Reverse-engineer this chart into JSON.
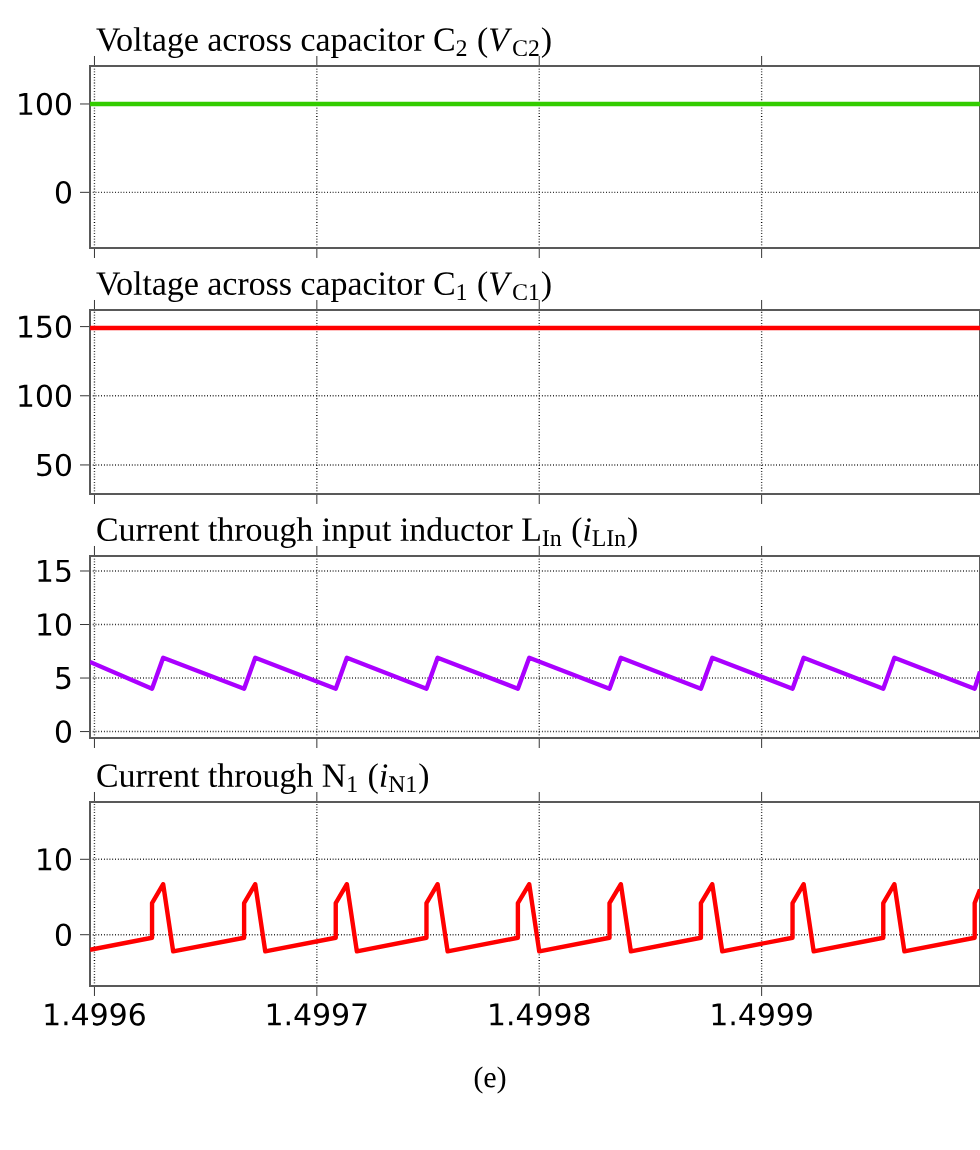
{
  "chart_data": [
    {
      "type": "line",
      "title": "Voltage across capacitor C$_{2}$ (*V*$_{C2}$)",
      "x": [
        1.499598,
        1.4999982
      ],
      "xlim": [
        1.499598,
        1.4999982
      ],
      "xticks": [
        1.4996,
        1.4997,
        1.4998,
        1.4999
      ],
      "ylim": [
        -63,
        143
      ],
      "yticks": [
        0,
        100
      ],
      "tick_labels": "y",
      "grid": true,
      "series": [
        {
          "color": "#33cc00",
          "values": [
            100,
            100
          ]
        }
      ]
    },
    {
      "type": "line",
      "title": "Voltage across capacitor C$_{1}$ (*V*$_{C1}$)",
      "x": [
        1.499598,
        1.4999982
      ],
      "xlim": [
        1.499598,
        1.4999982
      ],
      "xticks": [
        1.4996,
        1.4997,
        1.4998,
        1.4999
      ],
      "ylim": [
        29,
        162
      ],
      "yticks": [
        50,
        100,
        150
      ],
      "tick_labels": "y",
      "grid": true,
      "series": [
        {
          "color": "#ff0000",
          "values": [
            149,
            149
          ]
        }
      ]
    },
    {
      "type": "line",
      "title": "Current through input inductor L$_{In}$ (*i*$_{LIn}$)",
      "xlim": [
        1.499598,
        1.4999982
      ],
      "xticks": [
        1.4996,
        1.4997,
        1.4998,
        1.4999
      ],
      "ylim": [
        -0.6,
        16.4
      ],
      "yticks": [
        0,
        5,
        10,
        15
      ],
      "tick_labels": "y",
      "grid": true,
      "x": [
        1.499598,
        1.4996259,
        1.4996309,
        1.4996673,
        1.4996723,
        1.4997085,
        1.4997135,
        1.4997493,
        1.4997543,
        1.4997904,
        1.4997955,
        1.4998316,
        1.4998367,
        1.4998727,
        1.4998778,
        1.4999139,
        1.4999189,
        1.4999547,
        1.4999597,
        1.4999958,
        1.4999982
      ],
      "series": [
        {
          "color": "#aa00ff",
          "values": [
            6.5,
            4.0,
            6.9,
            4.0,
            6.9,
            4.0,
            6.9,
            4.0,
            6.9,
            4.0,
            6.9,
            4.0,
            6.9,
            4.0,
            6.9,
            4.0,
            6.9,
            4.0,
            6.9,
            4.0,
            5.6
          ]
        }
      ]
    },
    {
      "type": "line",
      "title": "Current through N$_{1}$ (*i*$_{N1}$)",
      "xlim": [
        1.499598,
        1.4999982
      ],
      "xticks": [
        1.4996,
        1.4997,
        1.4998,
        1.4999
      ],
      "ylim": [
        -6.8,
        17.6
      ],
      "yticks": [
        0,
        10
      ],
      "grid": true,
      "annotations": [
        "(e)"
      ],
      "x": [
        1.499598,
        1.4996259,
        1.4996259,
        1.4996309,
        1.4996354,
        1.4996673,
        1.4996673,
        1.4996723,
        1.4996768,
        1.4997085,
        1.4997085,
        1.4997135,
        1.499718,
        1.4997493,
        1.4997493,
        1.4997543,
        1.4997588,
        1.4997904,
        1.4997904,
        1.4997955,
        1.4998,
        1.4998316,
        1.4998316,
        1.4998367,
        1.4998412,
        1.4998727,
        1.4998727,
        1.4998778,
        1.4998823,
        1.4999139,
        1.4999139,
        1.4999189,
        1.4999234,
        1.4999547,
        1.4999547,
        1.4999597,
        1.4999642,
        1.4999958,
        1.4999958,
        1.4999982
      ],
      "series": [
        {
          "color": "#ff0000",
          "values": [
            -2.0,
            -0.4,
            4.2,
            6.7,
            -2.2,
            -0.4,
            4.2,
            6.7,
            -2.2,
            -0.4,
            4.2,
            6.7,
            -2.2,
            -0.4,
            4.2,
            6.7,
            -2.2,
            -0.4,
            4.2,
            6.7,
            -2.2,
            -0.4,
            4.2,
            6.7,
            -2.2,
            -0.4,
            4.2,
            6.7,
            -2.2,
            -0.4,
            4.2,
            6.7,
            -2.2,
            -0.4,
            4.2,
            6.7,
            -2.2,
            -0.4,
            4.2,
            6.0
          ]
        }
      ]
    }
  ]
}
